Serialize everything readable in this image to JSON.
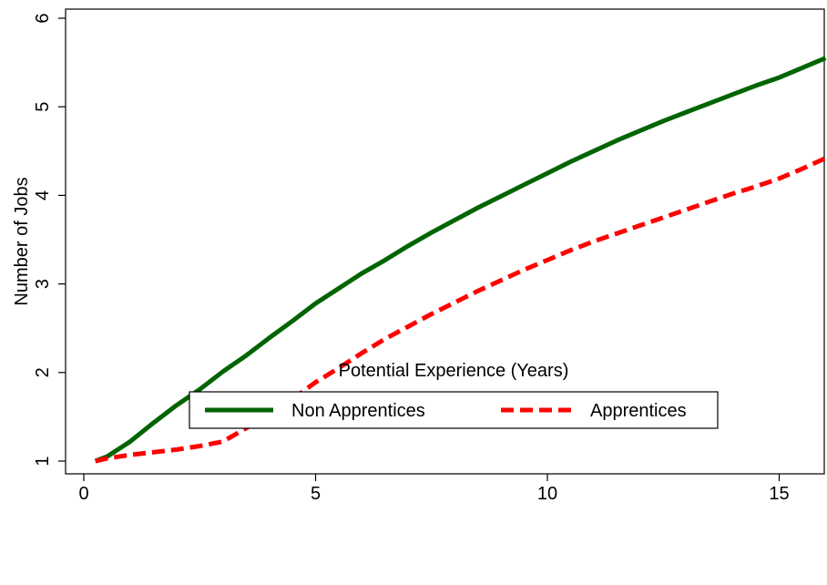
{
  "chart_data": {
    "type": "line",
    "xlabel": "Potential Experience (Years)",
    "ylabel": "Number of Jobs",
    "xlim": [
      0,
      16
    ],
    "ylim": [
      1,
      6
    ],
    "xticks": [
      0,
      5,
      10,
      15
    ],
    "yticks": [
      1,
      2,
      3,
      4,
      5,
      6
    ],
    "grid": false,
    "legend_position": "bottom",
    "series": [
      {
        "name": "Non Apprentices",
        "color": "#006400",
        "style": "solid",
        "x": [
          0.25,
          0.5,
          1,
          1.5,
          2,
          2.5,
          3,
          3.5,
          4,
          4.5,
          5,
          5.5,
          6,
          6.5,
          7,
          7.5,
          8,
          8.5,
          9,
          9.5,
          10,
          10.5,
          11,
          11.5,
          12,
          12.5,
          13,
          13.5,
          14,
          14.5,
          15,
          15.5,
          16
        ],
        "values": [
          1.0,
          1.05,
          1.22,
          1.43,
          1.63,
          1.81,
          2.01,
          2.19,
          2.39,
          2.58,
          2.78,
          2.95,
          3.12,
          3.27,
          3.43,
          3.58,
          3.72,
          3.86,
          3.99,
          4.12,
          4.25,
          4.38,
          4.5,
          4.62,
          4.73,
          4.84,
          4.94,
          5.04,
          5.14,
          5.24,
          5.33,
          5.44,
          5.55
        ]
      },
      {
        "name": "Apprentices",
        "color": "#ff0000",
        "style": "dashed",
        "x": [
          0.25,
          0.5,
          1,
          1.5,
          2,
          2.5,
          3,
          3.5,
          4,
          4.5,
          5,
          5.5,
          6,
          6.5,
          7,
          7.5,
          8,
          8.5,
          9,
          9.5,
          10,
          10.5,
          11,
          11.5,
          12,
          12.5,
          13,
          13.5,
          14,
          14.5,
          15,
          15.5,
          16
        ],
        "values": [
          1.0,
          1.03,
          1.07,
          1.1,
          1.13,
          1.17,
          1.22,
          1.37,
          1.53,
          1.7,
          1.89,
          2.05,
          2.22,
          2.38,
          2.52,
          2.66,
          2.79,
          2.92,
          3.04,
          3.16,
          3.27,
          3.38,
          3.48,
          3.57,
          3.66,
          3.75,
          3.84,
          3.93,
          4.02,
          4.1,
          4.19,
          4.3,
          4.42
        ]
      }
    ]
  }
}
